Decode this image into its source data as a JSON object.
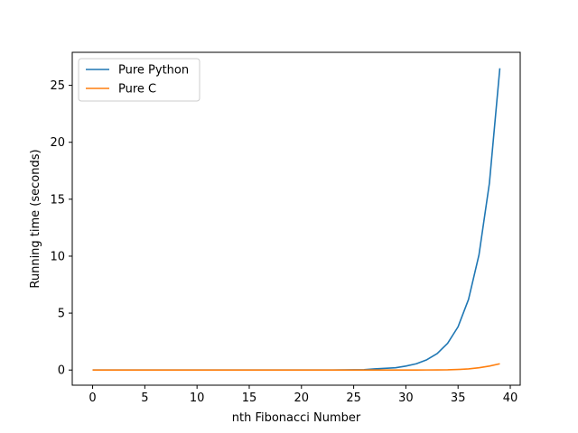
{
  "chart_data": {
    "type": "line",
    "title": "",
    "xlabel": "nth Fibonacci Number",
    "ylabel": "Running time (seconds)",
    "xlim": [
      -1.95,
      40.95
    ],
    "ylim": [
      -1.33,
      27.9
    ],
    "xticks": [
      0,
      5,
      10,
      15,
      20,
      25,
      30,
      35,
      40
    ],
    "yticks": [
      0,
      5,
      10,
      15,
      20,
      25
    ],
    "grid": false,
    "legend_position": "top-left",
    "x": [
      0,
      1,
      2,
      3,
      4,
      5,
      6,
      7,
      8,
      9,
      10,
      11,
      12,
      13,
      14,
      15,
      16,
      17,
      18,
      19,
      20,
      21,
      22,
      23,
      24,
      25,
      26,
      27,
      28,
      29,
      30,
      31,
      32,
      33,
      34,
      35,
      36,
      37,
      38,
      39
    ],
    "series": [
      {
        "name": "Pure Python",
        "color": "#1f77b4",
        "values": [
          0,
          0,
          0,
          0,
          0,
          0,
          0,
          0,
          0,
          0,
          0,
          0,
          0,
          0,
          0,
          0,
          0,
          0,
          0,
          0,
          0.002,
          0.003,
          0.004,
          0.007,
          0.011,
          0.018,
          0.03,
          0.1,
          0.15,
          0.2,
          0.35,
          0.55,
          0.9,
          1.45,
          2.35,
          3.8,
          6.2,
          10.1,
          16.4,
          26.5
        ]
      },
      {
        "name": "Pure C",
        "color": "#ff7f0e",
        "values": [
          0,
          0,
          0,
          0,
          0,
          0,
          0,
          0,
          0,
          0,
          0,
          0,
          0,
          0,
          0,
          0,
          0,
          0,
          0,
          0,
          0,
          0,
          0,
          0,
          0,
          0,
          0,
          0,
          0,
          0,
          0.002,
          0.004,
          0.007,
          0.012,
          0.02,
          0.05,
          0.1,
          0.2,
          0.35,
          0.55
        ]
      }
    ]
  }
}
